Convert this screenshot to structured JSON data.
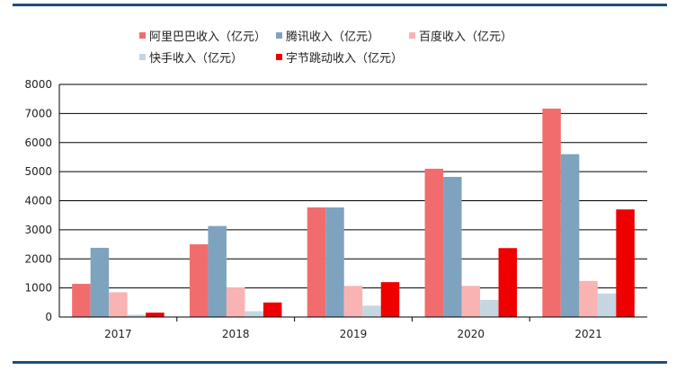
{
  "chart_data": {
    "type": "bar",
    "categories": [
      "2017",
      "2018",
      "2019",
      "2020",
      "2021"
    ],
    "series": [
      {
        "name": "阿里巴巴收入（亿元）",
        "color": "#f16d6d",
        "values": [
          1140,
          2500,
          3770,
          5100,
          7170
        ]
      },
      {
        "name": "腾讯收入（亿元）",
        "color": "#7ea3bf",
        "values": [
          2380,
          3130,
          3770,
          4820,
          5600
        ]
      },
      {
        "name": "百度收入（亿元）",
        "color": "#f9b3b3",
        "values": [
          850,
          1020,
          1070,
          1070,
          1240
        ]
      },
      {
        "name": "快手收入（亿元）",
        "color": "#c5d6e2",
        "values": [
          80,
          200,
          390,
          590,
          810
        ]
      },
      {
        "name": "字节跳动收入（亿元）",
        "color": "#ee0000",
        "values": [
          150,
          500,
          1200,
          2370,
          3700
        ]
      }
    ],
    "yticks": [
      "0",
      "1000",
      "2000",
      "3000",
      "4000",
      "5000",
      "6000",
      "7000",
      "8000"
    ],
    "ylim": [
      0,
      8000
    ],
    "grid": true,
    "legend_position": "top"
  }
}
